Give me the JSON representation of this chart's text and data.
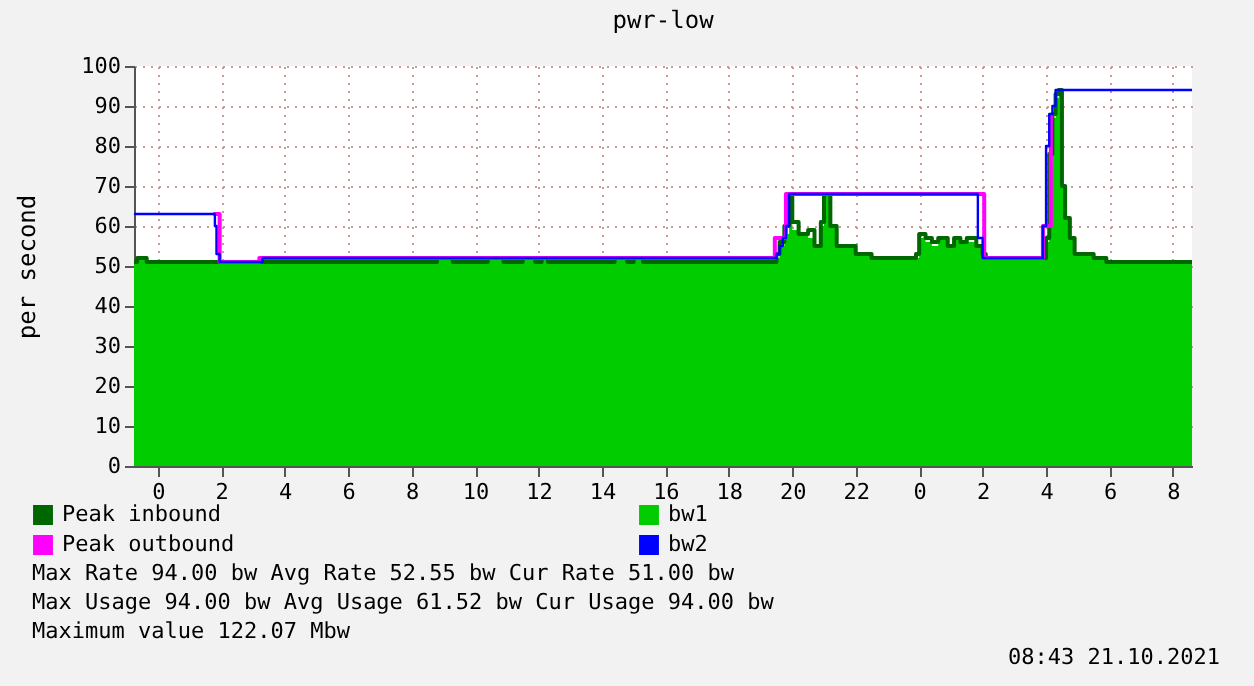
{
  "chart_data": {
    "type": "step",
    "title": "pwr-low",
    "ylabel": "per second",
    "xlim": [
      "2021-10-19T23:15",
      "2021-10-21T08:36"
    ],
    "ylim": [
      0,
      100
    ],
    "yticks": [
      0,
      10,
      20,
      30,
      40,
      50,
      60,
      70,
      80,
      90,
      100
    ],
    "xticks": [
      {
        "value": "2021-10-20T00:00",
        "label": "0"
      },
      {
        "value": "2021-10-20T02:00",
        "label": "2"
      },
      {
        "value": "2021-10-20T04:00",
        "label": "4"
      },
      {
        "value": "2021-10-20T06:00",
        "label": "6"
      },
      {
        "value": "2021-10-20T08:00",
        "label": "8"
      },
      {
        "value": "2021-10-20T10:00",
        "label": "10"
      },
      {
        "value": "2021-10-20T12:00",
        "label": "12"
      },
      {
        "value": "2021-10-20T14:00",
        "label": "14"
      },
      {
        "value": "2021-10-20T16:00",
        "label": "16"
      },
      {
        "value": "2021-10-20T18:00",
        "label": "18"
      },
      {
        "value": "2021-10-20T20:00",
        "label": "20"
      },
      {
        "value": "2021-10-20T22:00",
        "label": "22"
      },
      {
        "value": "2021-10-21T00:00",
        "label": "0"
      },
      {
        "value": "2021-10-21T02:00",
        "label": "2"
      },
      {
        "value": "2021-10-21T04:00",
        "label": "4"
      },
      {
        "value": "2021-10-21T06:00",
        "label": "6"
      },
      {
        "value": "2021-10-21T08:00",
        "label": "8"
      }
    ],
    "grid": true,
    "legend": "bottom left",
    "line_style": "solid",
    "marker": "none",
    "x": [
      "2021-10-19T23:15",
      "2021-10-19T23:21",
      "2021-10-19T23:39",
      "2021-10-20T08:48",
      "2021-10-20T09:18",
      "2021-10-20T10:24",
      "2021-10-20T10:54",
      "2021-10-20T11:30",
      "2021-10-20T11:54",
      "2021-10-20T12:06",
      "2021-10-20T12:18",
      "2021-10-20T14:24",
      "2021-10-20T14:48",
      "2021-10-20T15:00",
      "2021-10-20T15:18",
      "2021-10-20T19:30",
      "2021-10-20T19:36",
      "2021-10-20T19:45",
      "2021-10-20T19:54",
      "2021-10-20T20:00",
      "2021-10-20T20:12",
      "2021-10-20T20:30",
      "2021-10-20T20:42",
      "2021-10-20T20:54",
      "2021-10-20T21:00",
      "2021-10-20T21:12",
      "2021-10-20T21:24",
      "2021-10-20T22:00",
      "2021-10-20T22:30",
      "2021-10-20T23:54",
      "2021-10-21T00:00",
      "2021-10-21T00:12",
      "2021-10-21T00:24",
      "2021-10-21T00:36",
      "2021-10-21T00:54",
      "2021-10-21T01:06",
      "2021-10-21T01:18",
      "2021-10-21T01:30",
      "2021-10-21T01:48",
      "2021-10-21T02:00",
      "2021-10-21T02:06",
      "2021-10-21T03:54",
      "2021-10-21T04:00",
      "2021-10-21T04:06",
      "2021-10-21T04:12",
      "2021-10-21T04:18",
      "2021-10-21T04:24",
      "2021-10-21T04:30",
      "2021-10-21T04:36",
      "2021-10-21T04:45",
      "2021-10-21T04:54",
      "2021-10-21T05:30",
      "2021-10-21T05:54",
      "2021-10-21T08:36"
    ],
    "series": [
      {
        "name": "Peak inbound",
        "color": "#006600",
        "values": [
          51,
          52,
          51,
          52,
          51,
          52,
          51,
          52,
          51,
          52,
          51,
          52,
          51,
          52,
          51,
          53,
          56,
          60,
          68,
          61,
          58,
          59,
          55,
          61,
          68,
          60,
          55,
          53,
          52,
          53,
          58,
          57,
          56,
          57,
          55,
          57,
          56,
          57,
          55,
          53,
          52,
          52,
          57,
          78,
          88,
          93,
          94,
          70,
          62,
          57,
          53,
          52,
          51,
          51
        ]
      },
      {
        "name": "bw1",
        "color": "#00cc00",
        "type": "area",
        "values": [
          51,
          52,
          51,
          52,
          51,
          52,
          51,
          52,
          51,
          52,
          51,
          52,
          51,
          52,
          51,
          52,
          55,
          58,
          68,
          59,
          58,
          57,
          55,
          60,
          68,
          60,
          55,
          53,
          52,
          52,
          57,
          56,
          55,
          57,
          55,
          57,
          56,
          56,
          55,
          53,
          52,
          52,
          56,
          75,
          87,
          92,
          93,
          70,
          62,
          57,
          53,
          52,
          51,
          51
        ]
      },
      {
        "name": "Peak outbound",
        "color": "#ff00ff",
        "x": [
          "2021-10-20T01:45",
          "2021-10-20T01:57",
          "2021-10-20T03:12",
          "2021-10-20T19:27",
          "2021-10-20T19:48",
          "2021-10-21T01:48",
          "2021-10-21T02:03",
          "2021-10-21T03:54",
          "2021-10-21T04:09"
        ],
        "values": [
          63,
          51,
          52,
          57,
          68,
          68,
          52,
          60,
          88
        ]
      },
      {
        "name": "bw2",
        "color": "#0000ff",
        "x": [
          "2021-10-19T23:15",
          "2021-10-20T01:48",
          "2021-10-20T01:51",
          "2021-10-20T01:57",
          "2021-10-20T03:18",
          "2021-10-20T19:30",
          "2021-10-20T19:36",
          "2021-10-20T19:42",
          "2021-10-20T19:48",
          "2021-10-20T19:54",
          "2021-10-21T01:51",
          "2021-10-21T01:57",
          "2021-10-21T02:00",
          "2021-10-21T03:54",
          "2021-10-21T04:00",
          "2021-10-21T04:06",
          "2021-10-21T04:12",
          "2021-10-21T04:18",
          "2021-10-21T08:36"
        ],
        "values": [
          63,
          60,
          53,
          51,
          52,
          53,
          55,
          57,
          60,
          68,
          57,
          57,
          52,
          60,
          80,
          88,
          90,
          94,
          94
        ]
      }
    ],
    "annotations": [
      "Max Rate   94.00  bw  Avg Rate   52.55  bw  Cur Rate   51.00  bw",
      "Max  Usage 94.00  bw  Avg  Usage 61.52  bw  Cur  Usage 94.00  bw",
      "Maximum value 122.07 Mbw",
      "08:43 21.10.2021"
    ]
  }
}
